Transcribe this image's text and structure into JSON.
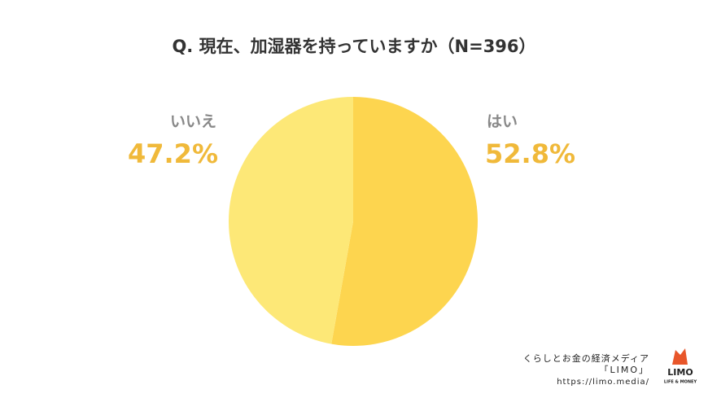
{
  "chart_data": {
    "type": "pie",
    "title": "Q. 現在、加湿器を持っていますか（N=396）",
    "categories": [
      "はい",
      "いいえ"
    ],
    "values": [
      52.8,
      47.2
    ],
    "value_labels": [
      "52.8%",
      "47.2%"
    ],
    "colors": [
      "#fdd54f",
      "#fde877"
    ],
    "annotations": [
      "くらしとお金の経済メディア",
      "「LIMO」",
      "https://limo.media/",
      "LIMO",
      "LIFE & MONEY"
    ]
  }
}
